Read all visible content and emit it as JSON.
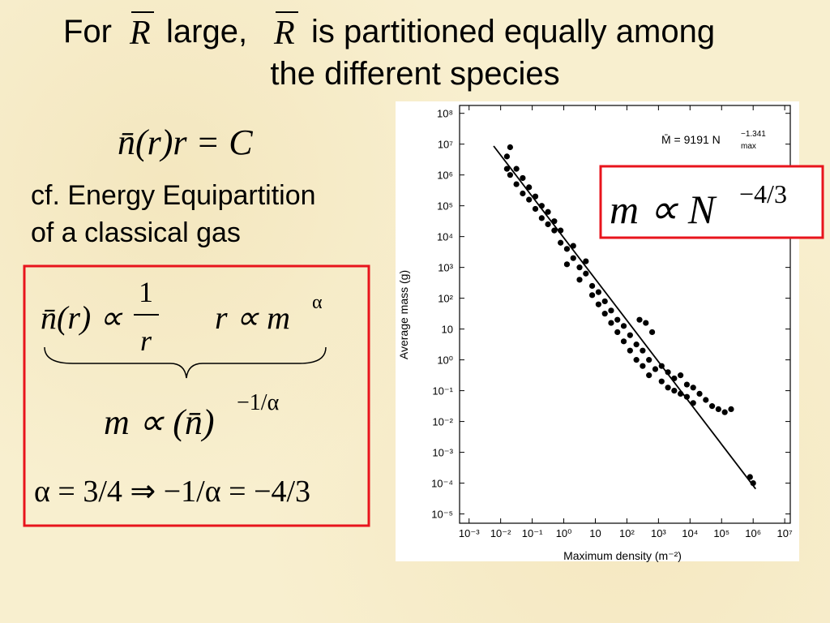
{
  "title": {
    "parts": [
      "For",
      "R",
      "large,",
      "R",
      "is partitioned equally among",
      "the different species"
    ]
  },
  "equation_1": "n̄(r)r = C",
  "note": [
    "cf. Energy Equipartition",
    "of a classical gas"
  ],
  "box": {
    "proportional_lhs": "n̄(r) ∝",
    "fraction": {
      "numerator": "1",
      "denominator": "r"
    },
    "power_law": {
      "base": "r ∝ m",
      "exponent": "α"
    },
    "result": {
      "base": "m ∝ (n̄)",
      "exponent": "−1/α"
    },
    "substitution": "α = 3/4 ⇒ −1/α = −4/3"
  },
  "callout": {
    "base": "m ∝ N",
    "exponent": "−4/3"
  },
  "chart_data": {
    "type": "scatter",
    "x_label": "Maximum density (m⁻²)",
    "y_label": "Average mass (g)",
    "annotation": {
      "base": "M̄ = 9191 N",
      "exponent": "−1.341",
      "subscript": "max"
    },
    "xlog": true,
    "ylog": true,
    "xlim": [
      0.0005,
      15000000
    ],
    "ylim": [
      5e-06,
      180000000
    ],
    "xticks": [
      {
        "value": 0.001,
        "label": "10⁻³"
      },
      {
        "value": 0.01,
        "label": "10⁻²"
      },
      {
        "value": 0.1,
        "label": "10⁻¹"
      },
      {
        "value": 1,
        "label": "10⁰"
      },
      10,
      {
        "value": 100,
        "label": "10²"
      },
      {
        "value": 1000,
        "label": "10³"
      },
      {
        "value": 10000,
        "label": "10⁴"
      },
      {
        "value": 100000,
        "label": "10⁵"
      },
      {
        "value": 1000000,
        "label": "10⁶"
      },
      {
        "value": 10000000,
        "label": "10⁷"
      }
    ],
    "yticks": [
      {
        "value": 1e-05,
        "label": "10⁻⁵"
      },
      {
        "value": 0.0001,
        "label": "10⁻⁴"
      },
      {
        "value": 0.001,
        "label": "10⁻³"
      },
      {
        "value": 0.01,
        "label": "10⁻²"
      },
      {
        "value": 0.1,
        "label": "10⁻¹"
      },
      {
        "value": 1,
        "label": "10⁰"
      },
      10,
      {
        "value": 100,
        "label": "10²"
      },
      {
        "value": 1000,
        "label": "10³"
      },
      {
        "value": 10000,
        "label": "10⁴"
      },
      {
        "value": 100000,
        "label": "10⁵"
      },
      {
        "value": 1000000,
        "label": "10⁶"
      },
      {
        "value": 10000000,
        "label": "10⁷"
      },
      {
        "value": 100000000,
        "label": "10⁸"
      }
    ],
    "color": "#000000",
    "x": [
      0.0158,
      0.0158,
      0.02,
      0.02,
      0.0316,
      0.0316,
      0.0501,
      0.0501,
      0.0794,
      0.0794,
      0.126,
      0.126,
      0.2,
      0.2,
      0.316,
      0.316,
      0.501,
      0.501,
      0.794,
      0.794,
      1.26,
      1.26,
      2,
      2,
      3.16,
      3.16,
      5.01,
      5.01,
      7.94,
      7.94,
      12.6,
      12.6,
      20,
      20,
      31.6,
      31.6,
      50.1,
      50.1,
      79.4,
      79.4,
      126,
      126,
      200,
      200,
      251,
      316,
      316,
      398,
      501,
      501,
      631,
      794,
      1260,
      1260,
      2000,
      2000,
      3160,
      3160,
      5010,
      5010,
      7940,
      7940,
      12600,
      12600,
      20000,
      31600,
      50100,
      79400,
      126000,
      200000,
      794000,
      1000000
    ],
    "values": [
      1580000,
      3980000,
      7940000,
      1000000,
      501000,
      1580000,
      251000,
      794000,
      158000,
      398000,
      79400,
      200000,
      39800,
      100000,
      25100,
      63100,
      15800,
      31600,
      6310,
      15800,
      3980,
      1260,
      2000,
      5010,
      1000,
      398,
      631,
      1580,
      251,
      126,
      158,
      63.1,
      79.4,
      31.6,
      39.8,
      15.8,
      20,
      7.94,
      12.6,
      3.98,
      6.31,
      2,
      3.16,
      1,
      20,
      2,
      0.631,
      15.8,
      1,
      0.316,
      7.94,
      0.501,
      0.631,
      0.2,
      0.398,
      0.126,
      0.251,
      0.1,
      0.316,
      0.0794,
      0.158,
      0.0631,
      0.126,
      0.0398,
      0.0794,
      0.0501,
      0.0316,
      0.0251,
      0.02,
      0.0251,
      0.000158,
      0.0001
    ],
    "fit": {
      "x": [
        0.006,
        1200000
      ],
      "y": [
        8700000,
        6.5e-05
      ]
    }
  }
}
